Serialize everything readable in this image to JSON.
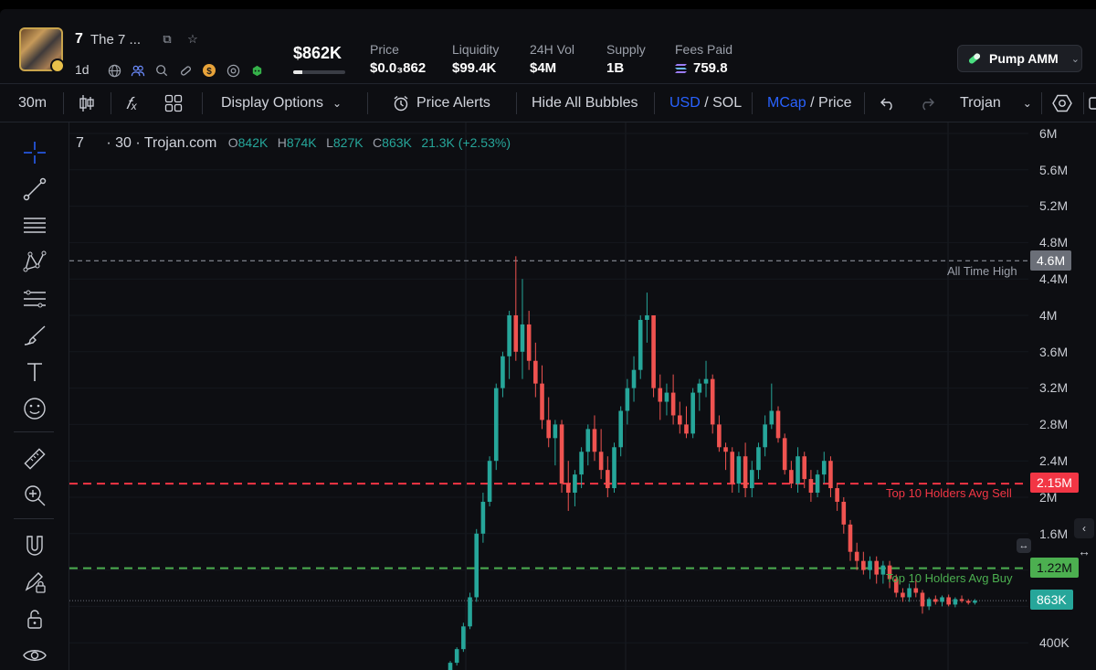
{
  "token": {
    "number": "7",
    "name": "The 7 ...",
    "timeframe": "1d"
  },
  "header": {
    "mcap": "$862K",
    "mcap_progress": 0.18,
    "stats": [
      {
        "label": "Price",
        "value": "$0.0₃862"
      },
      {
        "label": "Liquidity",
        "value": "$99.4K"
      },
      {
        "label": "24H Vol",
        "value": "$4M"
      },
      {
        "label": "Supply",
        "value": "1B"
      },
      {
        "label": "Fees Paid",
        "value": "759.8"
      }
    ],
    "pump_label": "Pump AMM"
  },
  "toolbar": {
    "interval": "30m",
    "display_options": "Display Options",
    "price_alerts": "Price Alerts",
    "hide_bubbles": "Hide All Bubbles",
    "usd": "USD",
    "slash1": " / ",
    "sol": "SOL",
    "mcap": "MCap",
    "slash2": " / ",
    "price": "Price",
    "trojan": "Trojan"
  },
  "legend": {
    "symbol": "7",
    "interval_source": "· 30 · Trojan.com",
    "o_label": "O",
    "o_val": "842K",
    "h_label": "H",
    "h_val": "874K",
    "l_label": "L",
    "l_val": "827K",
    "c_label": "C",
    "c_val": "863K",
    "change": "21.3K (+2.53%)"
  },
  "price_axis": {
    "ticks": [
      "6M",
      "5.6M",
      "5.2M",
      "4.8M",
      "4.4M",
      "4M",
      "3.6M",
      "3.2M",
      "2.8M",
      "2.4M",
      "2M",
      "1.6M",
      "400K"
    ],
    "tags": [
      {
        "label": "4.6M",
        "color": "#6b6f78"
      },
      {
        "label": "2.15M",
        "color": "#f23645"
      },
      {
        "label": "1.22M",
        "color": "#4caf50"
      },
      {
        "label": "863K",
        "color": "#26a69a"
      }
    ]
  },
  "lines": {
    "ath": "All Time High",
    "sell": "Top 10 Holders Avg Sell",
    "buy": "Top 10 Holders Avg Buy"
  },
  "colors": {
    "up": "#26a69a",
    "down": "#ef5350",
    "accent": "#2962ff"
  }
}
